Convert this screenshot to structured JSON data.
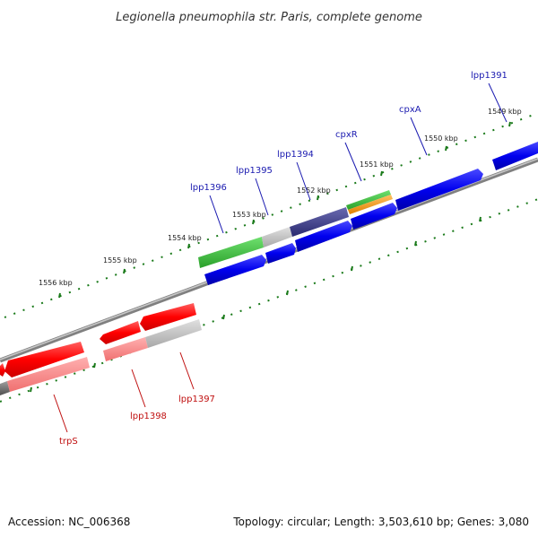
{
  "title": "Legionella pneumophila str. Paris, complete genome",
  "footer": {
    "accession": "Accession: NC_006368",
    "summary": "Topology: circular; Length: 3,503,610 bp; Genes: 3,080"
  },
  "colors": {
    "forward_cds": "#0000ee",
    "reverse_cds": "#ff0000",
    "backbone": "#808080",
    "ticks": "#1a7a1a",
    "forward_label": "#1a1ab0",
    "reverse_label": "#c01010"
  },
  "kbp_labels": [
    "1556 kbp",
    "1555 kbp",
    "1554 kbp",
    "1553 kbp",
    "1552 kbp",
    "1551 kbp",
    "1550 kbp",
    "1549 kbp"
  ],
  "forward_genes": [
    "lpp1396",
    "lpp1395",
    "lpp1394",
    "cpxR",
    "cpxA",
    "lpp1391"
  ],
  "reverse_genes": [
    "trpS",
    "lpp1398",
    "lpp1397"
  ]
}
